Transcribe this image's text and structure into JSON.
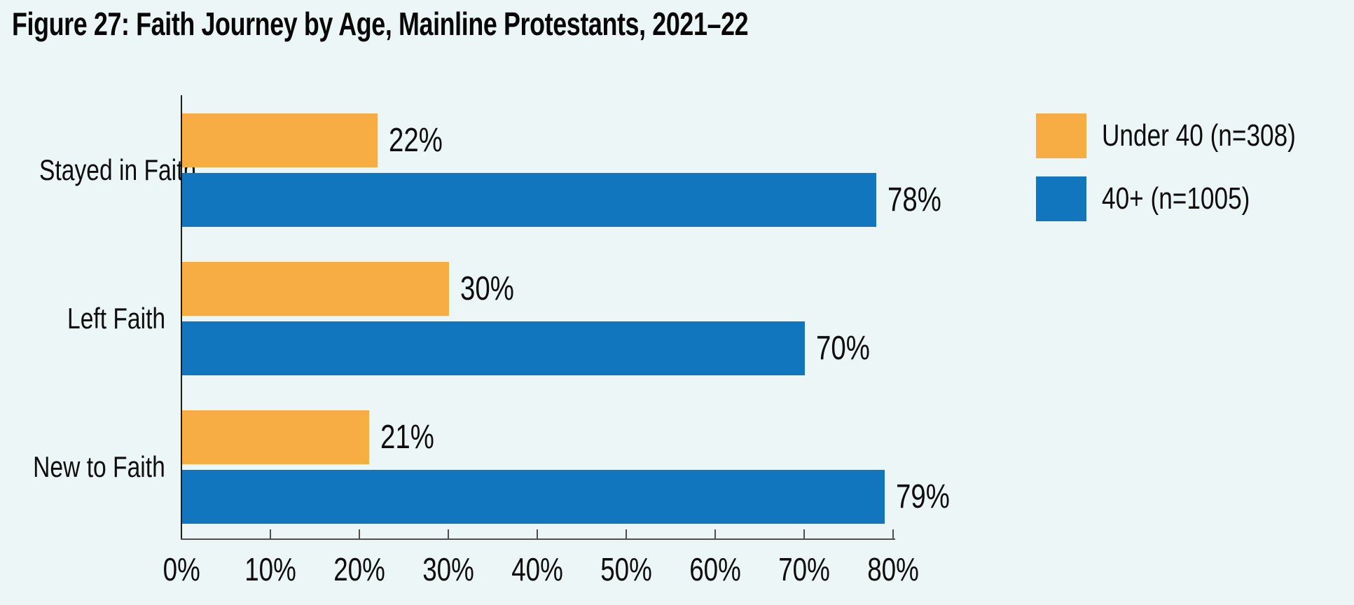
{
  "figure": {
    "title": "Figure 27: Faith Journey by Age, Mainline Protestants, 2021–22",
    "background_color": "#edf6f7",
    "text_color": "#0d0d0d",
    "axis_color": "#4f4f4f"
  },
  "chart_data": {
    "type": "bar",
    "orientation": "horizontal",
    "title": "Figure 27: Faith Journey by Age, Mainline Protestants, 2021–22",
    "categories": [
      "Stayed in Faith",
      "Left Faith",
      "New to Faith"
    ],
    "series": [
      {
        "name": "Under 40 (n=308)",
        "color": "#f8ac44",
        "values": [
          22,
          30,
          21
        ]
      },
      {
        "name": "40+ (n=1005)",
        "color": "#1176bd",
        "values": [
          78,
          70,
          79
        ]
      }
    ],
    "value_suffix": "%",
    "xlabel": "",
    "ylabel": "",
    "xlim": [
      0,
      80
    ],
    "x_tick_step": 10,
    "x_tick_labels": [
      "0%",
      "10%",
      "20%",
      "30%",
      "40%",
      "50%",
      "60%",
      "70%",
      "80%"
    ],
    "grid": false,
    "legend_position": "top-right",
    "bar_labels_shown": true
  }
}
